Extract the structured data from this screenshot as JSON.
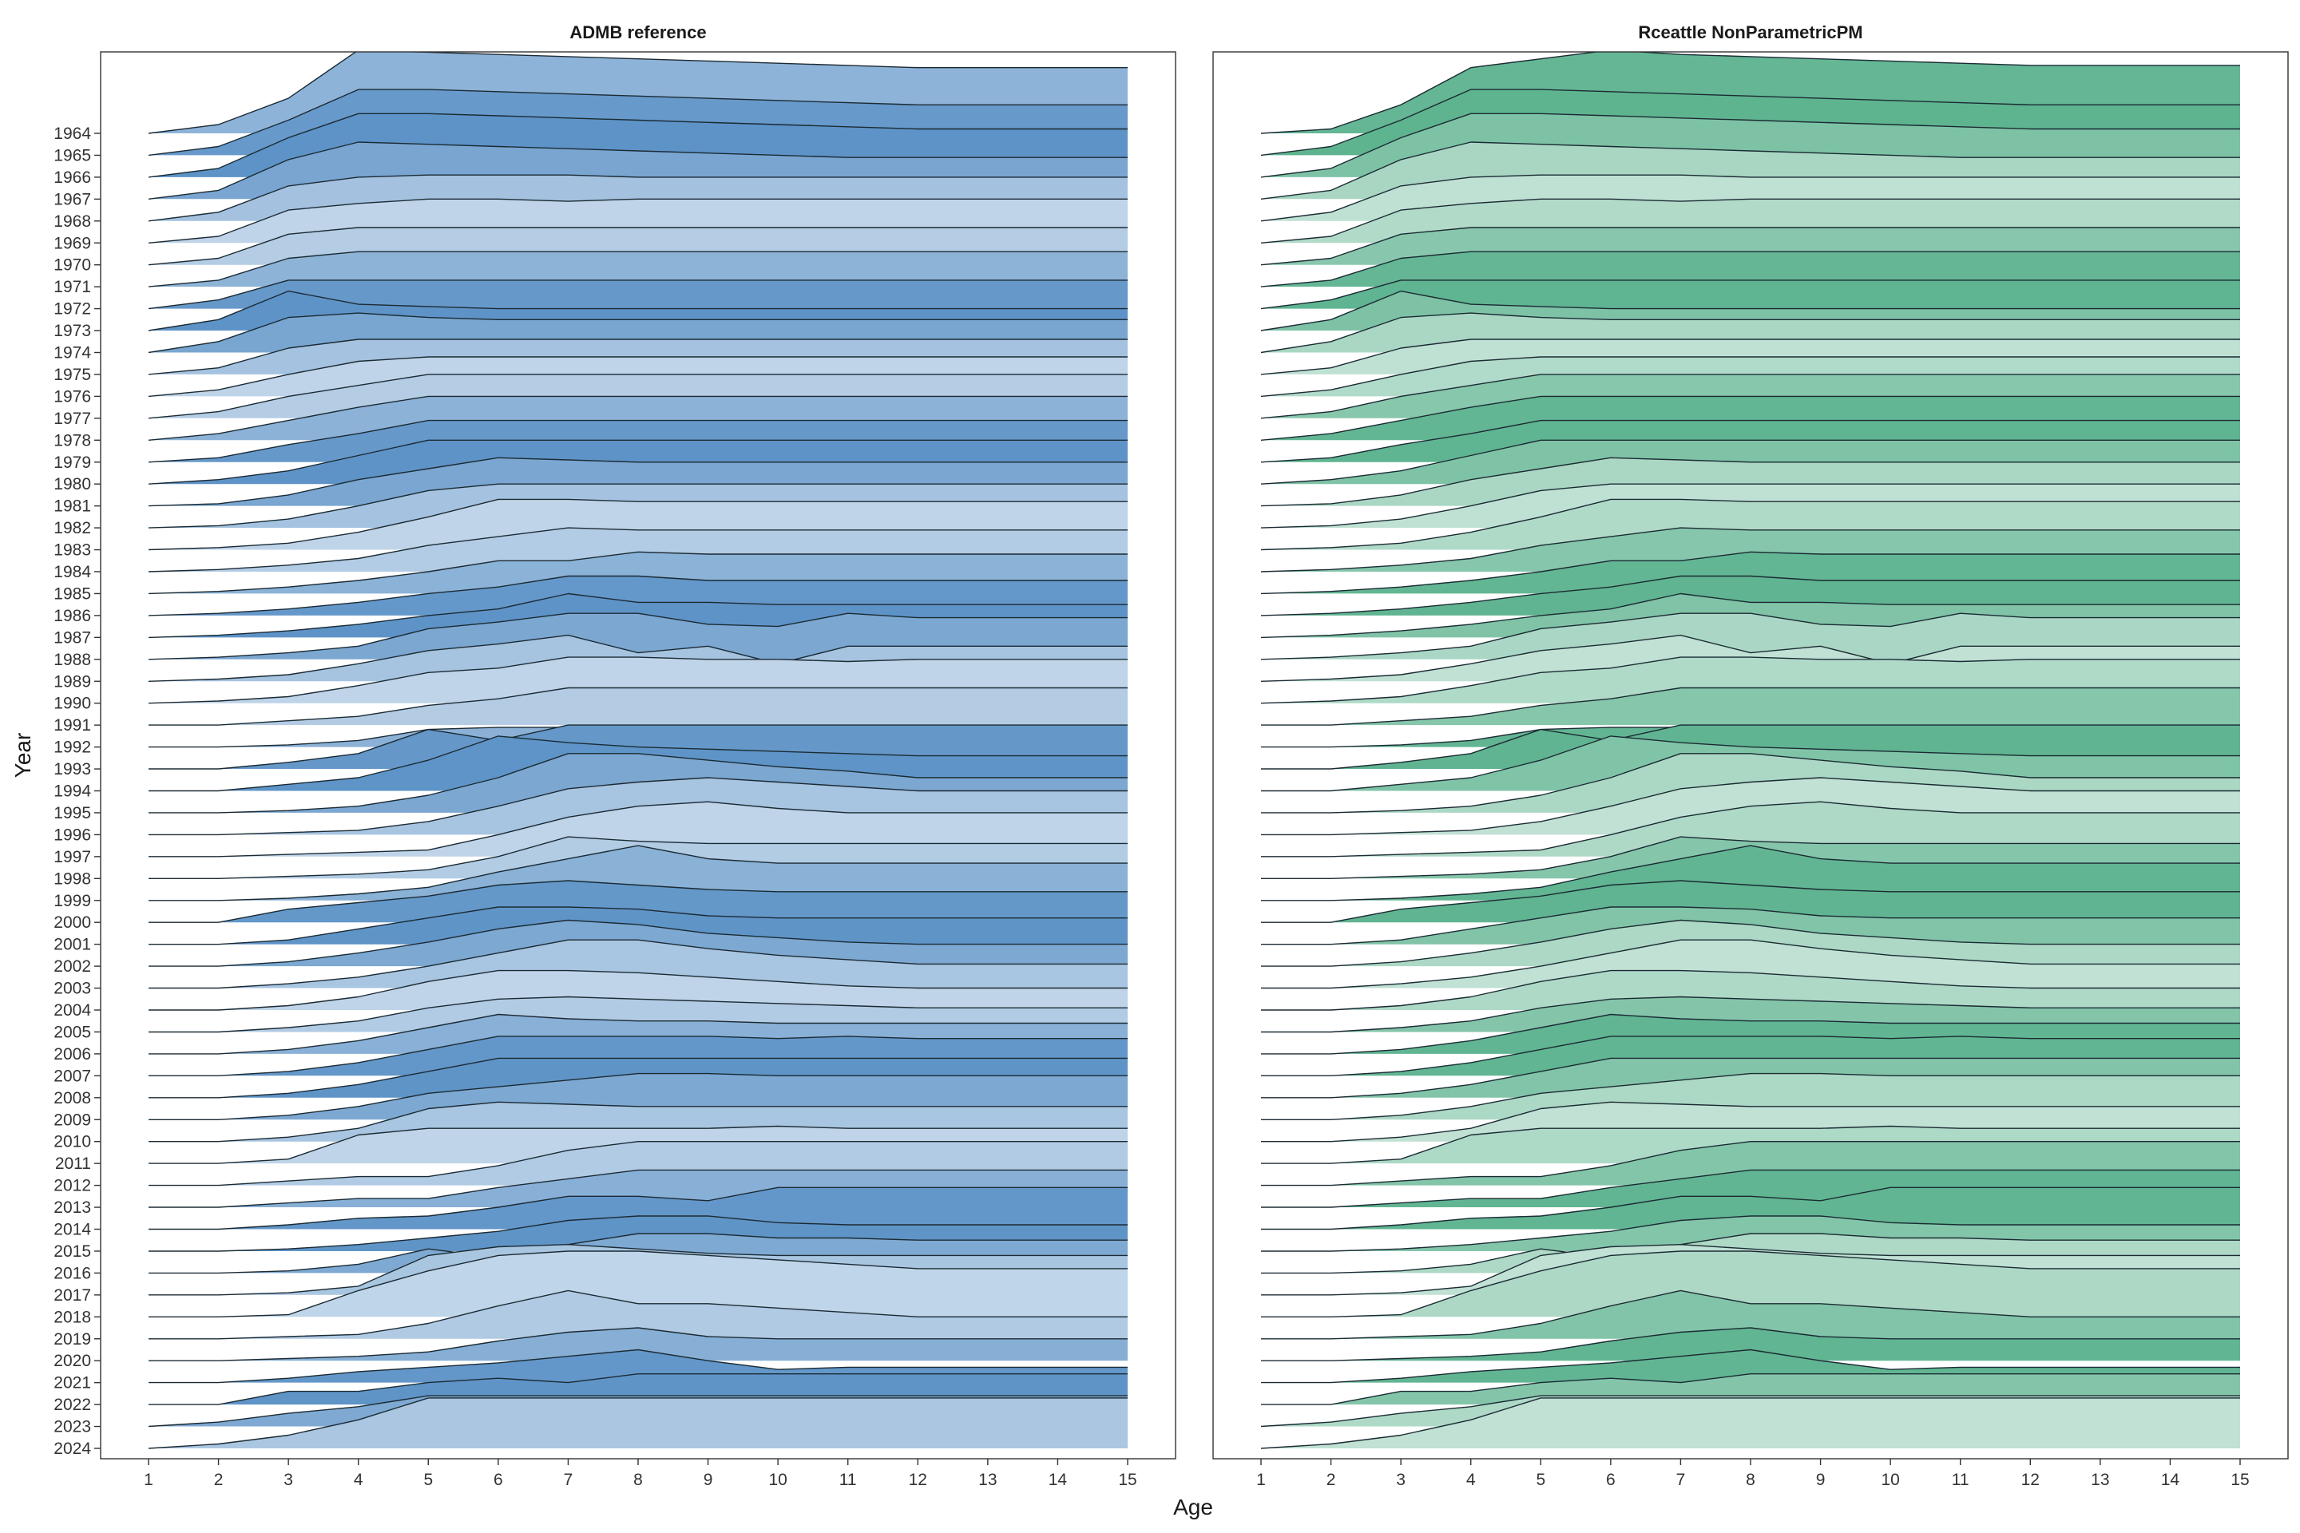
{
  "chart_data": {
    "type": "area",
    "subtype": "ridgeline",
    "xlabel": "Age",
    "ylabel": "Year",
    "ages": [
      1,
      2,
      3,
      4,
      5,
      6,
      7,
      8,
      9,
      10,
      11,
      12,
      13,
      14,
      15
    ],
    "years": [
      1964,
      1965,
      1966,
      1967,
      1968,
      1969,
      1970,
      1971,
      1972,
      1973,
      1974,
      1975,
      1976,
      1977,
      1978,
      1979,
      1980,
      1981,
      1982,
      1983,
      1984,
      1985,
      1986,
      1987,
      1988,
      1989,
      1990,
      1991,
      1992,
      1993,
      1994,
      1995,
      1996,
      1997,
      1998,
      1999,
      2000,
      2001,
      2002,
      2003,
      2004,
      2005,
      2006,
      2007,
      2008,
      2009,
      2010,
      2011,
      2012,
      2013,
      2014,
      2015,
      2016,
      2017,
      2018,
      2019,
      2020,
      2021,
      2022,
      2023,
      2024
    ],
    "xlim": [
      1,
      15
    ],
    "grid": false,
    "legend": "none",
    "value_units": "ridge height in multiples of year spacing",
    "panels": [
      {
        "title": "ADMB reference",
        "color": "#4a86c0",
        "series_key": "shared_profiles"
      },
      {
        "title": "Rceattle NonParametricPM",
        "color": "#4aaa82",
        "series_key": "shared_profiles",
        "overrides": {
          "1964": [
            0.0,
            0.2,
            1.3,
            3.0,
            3.4,
            3.8,
            3.6,
            3.5,
            3.4,
            3.3,
            3.2,
            3.1,
            3.1,
            3.1,
            3.1
          ]
        }
      }
    ],
    "shared_profiles": {
      "1964": [
        0.0,
        0.4,
        1.6,
        3.8,
        3.7,
        3.6,
        3.5,
        3.4,
        3.3,
        3.2,
        3.1,
        3.0,
        3.0,
        3.0,
        3.0
      ],
      "1965": [
        0.0,
        0.4,
        1.6,
        3.0,
        3.0,
        2.9,
        2.8,
        2.7,
        2.6,
        2.5,
        2.4,
        2.3,
        2.3,
        2.3,
        2.3
      ],
      "1966": [
        0.0,
        0.4,
        1.8,
        2.9,
        2.9,
        2.8,
        2.7,
        2.6,
        2.5,
        2.4,
        2.3,
        2.2,
        2.2,
        2.2,
        2.2
      ],
      "1967": [
        0.0,
        0.4,
        1.8,
        2.6,
        2.5,
        2.4,
        2.3,
        2.2,
        2.1,
        2.0,
        1.9,
        1.9,
        1.9,
        1.9,
        1.9
      ],
      "1968": [
        0.0,
        0.4,
        1.6,
        2.0,
        2.1,
        2.1,
        2.1,
        2.0,
        2.0,
        2.0,
        2.0,
        2.0,
        2.0,
        2.0,
        2.0
      ],
      "1969": [
        0.0,
        0.3,
        1.5,
        1.8,
        2.0,
        2.0,
        1.9,
        2.0,
        2.0,
        2.0,
        2.0,
        2.0,
        2.0,
        2.0,
        2.0
      ],
      "1970": [
        0.0,
        0.3,
        1.4,
        1.7,
        1.7,
        1.7,
        1.7,
        1.7,
        1.7,
        1.7,
        1.7,
        1.7,
        1.7,
        1.7,
        1.7
      ],
      "1971": [
        0.0,
        0.3,
        1.3,
        1.6,
        1.6,
        1.6,
        1.6,
        1.6,
        1.6,
        1.6,
        1.6,
        1.6,
        1.6,
        1.6,
        1.6
      ],
      "1972": [
        0.0,
        0.4,
        1.3,
        1.3,
        1.3,
        1.3,
        1.3,
        1.3,
        1.3,
        1.3,
        1.3,
        1.3,
        1.3,
        1.3,
        1.3
      ],
      "1973": [
        0.0,
        0.5,
        1.8,
        1.2,
        1.1,
        1.0,
        1.0,
        1.0,
        1.0,
        1.0,
        1.0,
        1.0,
        1.0,
        1.0,
        1.0
      ],
      "1974": [
        0.0,
        0.5,
        1.6,
        1.8,
        1.6,
        1.5,
        1.5,
        1.5,
        1.5,
        1.5,
        1.5,
        1.5,
        1.5,
        1.5,
        1.5
      ],
      "1975": [
        0.0,
        0.3,
        1.2,
        1.6,
        1.6,
        1.6,
        1.6,
        1.6,
        1.6,
        1.6,
        1.6,
        1.6,
        1.6,
        1.6,
        1.6
      ],
      "1976": [
        0.0,
        0.3,
        1.0,
        1.6,
        1.8,
        1.8,
        1.8,
        1.8,
        1.8,
        1.8,
        1.8,
        1.8,
        1.8,
        1.8,
        1.8
      ],
      "1977": [
        0.0,
        0.3,
        1.0,
        1.5,
        2.0,
        2.0,
        2.0,
        2.0,
        2.0,
        2.0,
        2.0,
        2.0,
        2.0,
        2.0,
        2.0
      ],
      "1978": [
        0.0,
        0.3,
        0.9,
        1.5,
        2.0,
        2.0,
        2.0,
        2.0,
        2.0,
        2.0,
        2.0,
        2.0,
        2.0,
        2.0,
        2.0
      ],
      "1979": [
        0.0,
        0.2,
        0.8,
        1.3,
        1.9,
        1.9,
        1.9,
        1.9,
        1.9,
        1.9,
        1.9,
        1.9,
        1.9,
        1.9,
        1.9
      ],
      "1980": [
        0.0,
        0.2,
        0.6,
        1.3,
        2.0,
        2.0,
        2.0,
        2.0,
        2.0,
        2.0,
        2.0,
        2.0,
        2.0,
        2.0,
        2.0
      ],
      "1981": [
        0.0,
        0.1,
        0.5,
        1.2,
        1.7,
        2.2,
        2.1,
        2.0,
        2.0,
        2.0,
        2.0,
        2.0,
        2.0,
        2.0,
        2.0
      ],
      "1982": [
        0.0,
        0.1,
        0.4,
        1.0,
        1.7,
        2.0,
        2.0,
        2.0,
        2.0,
        2.0,
        2.0,
        2.0,
        2.0,
        2.0,
        2.0
      ],
      "1983": [
        0.0,
        0.1,
        0.3,
        0.8,
        1.5,
        2.3,
        2.3,
        2.2,
        2.2,
        2.2,
        2.2,
        2.2,
        2.2,
        2.2,
        2.2
      ],
      "1984": [
        0.0,
        0.1,
        0.3,
        0.6,
        1.2,
        1.6,
        2.0,
        1.9,
        1.9,
        1.9,
        1.9,
        1.9,
        1.9,
        1.9,
        1.9
      ],
      "1985": [
        0.0,
        0.1,
        0.3,
        0.6,
        1.0,
        1.5,
        1.5,
        1.9,
        1.8,
        1.8,
        1.8,
        1.8,
        1.8,
        1.8,
        1.8
      ],
      "1986": [
        0.0,
        0.1,
        0.3,
        0.6,
        1.0,
        1.3,
        1.8,
        1.8,
        1.6,
        1.6,
        1.6,
        1.6,
        1.6,
        1.6,
        1.6
      ],
      "1987": [
        0.0,
        0.1,
        0.3,
        0.6,
        1.0,
        1.3,
        2.0,
        1.6,
        1.6,
        1.5,
        1.5,
        1.5,
        1.5,
        1.5,
        1.5
      ],
      "1988": [
        0.0,
        0.1,
        0.3,
        0.6,
        1.4,
        1.7,
        2.1,
        2.1,
        1.6,
        1.5,
        2.1,
        1.9,
        1.9,
        1.9,
        1.9
      ],
      "1989": [
        0.0,
        0.1,
        0.3,
        0.8,
        1.4,
        1.7,
        2.1,
        1.3,
        1.6,
        0.8,
        1.6,
        1.6,
        1.6,
        1.6,
        1.6
      ],
      "1990": [
        0.0,
        0.1,
        0.3,
        0.8,
        1.4,
        1.6,
        2.1,
        2.1,
        2.0,
        2.0,
        1.9,
        2.0,
        2.0,
        2.0,
        2.0
      ],
      "1991": [
        0.0,
        0.0,
        0.2,
        0.4,
        0.9,
        1.2,
        1.7,
        1.7,
        1.7,
        1.7,
        1.7,
        1.7,
        1.7,
        1.7,
        1.7
      ],
      "1992": [
        0.0,
        0.0,
        0.1,
        0.3,
        0.8,
        0.9,
        0.9,
        0.9,
        0.9,
        0.9,
        0.9,
        0.9,
        0.9,
        0.9,
        0.9
      ],
      "1993": [
        0.0,
        0.0,
        0.3,
        0.7,
        1.8,
        1.3,
        2.0,
        2.0,
        2.0,
        2.0,
        2.0,
        2.0,
        2.0,
        2.0,
        2.0
      ],
      "1994": [
        0.0,
        0.0,
        0.3,
        0.6,
        1.4,
        2.5,
        2.2,
        2.0,
        1.9,
        1.8,
        1.7,
        1.6,
        1.6,
        1.6,
        1.6
      ],
      "1995": [
        0.0,
        0.0,
        0.1,
        0.3,
        0.8,
        1.6,
        2.7,
        2.7,
        2.4,
        2.1,
        1.9,
        1.6,
        1.6,
        1.6,
        1.6
      ],
      "1996": [
        0.0,
        0.0,
        0.1,
        0.2,
        0.6,
        1.3,
        2.1,
        2.4,
        2.6,
        2.4,
        2.2,
        2.0,
        2.0,
        2.0,
        2.0
      ],
      "1997": [
        0.0,
        0.0,
        0.1,
        0.2,
        0.3,
        1.0,
        1.8,
        2.3,
        2.5,
        2.2,
        2.0,
        2.0,
        2.0,
        2.0,
        2.0
      ],
      "1998": [
        0.0,
        0.0,
        0.1,
        0.2,
        0.4,
        1.0,
        1.9,
        1.7,
        1.6,
        1.6,
        1.6,
        1.6,
        1.6,
        1.6,
        1.6
      ],
      "1999": [
        0.0,
        0.0,
        0.1,
        0.3,
        0.6,
        1.3,
        1.9,
        2.5,
        1.9,
        1.7,
        1.7,
        1.7,
        1.7,
        1.7,
        1.7
      ],
      "2000": [
        0.0,
        0.0,
        0.6,
        0.9,
        1.2,
        1.7,
        1.9,
        1.7,
        1.5,
        1.4,
        1.4,
        1.4,
        1.4,
        1.4,
        1.4
      ],
      "2001": [
        0.0,
        0.0,
        0.2,
        0.7,
        1.2,
        1.7,
        1.7,
        1.6,
        1.3,
        1.2,
        1.2,
        1.2,
        1.2,
        1.2,
        1.2
      ],
      "2002": [
        0.0,
        0.0,
        0.2,
        0.6,
        1.1,
        1.7,
        2.1,
        1.9,
        1.5,
        1.3,
        1.1,
        1.0,
        1.0,
        1.0,
        1.0
      ],
      "2003": [
        0.0,
        0.0,
        0.2,
        0.5,
        1.0,
        1.6,
        2.2,
        2.2,
        1.8,
        1.5,
        1.3,
        1.1,
        1.1,
        1.1,
        1.1
      ],
      "2004": [
        0.0,
        0.0,
        0.2,
        0.6,
        1.3,
        1.8,
        1.8,
        1.7,
        1.5,
        1.3,
        1.1,
        1.0,
        1.0,
        1.0,
        1.0
      ],
      "2005": [
        0.0,
        0.0,
        0.2,
        0.5,
        1.1,
        1.5,
        1.6,
        1.5,
        1.4,
        1.3,
        1.2,
        1.1,
        1.1,
        1.1,
        1.1
      ],
      "2006": [
        0.0,
        0.0,
        0.2,
        0.6,
        1.2,
        1.8,
        1.6,
        1.5,
        1.5,
        1.4,
        1.4,
        1.4,
        1.4,
        1.4,
        1.4
      ],
      "2007": [
        0.0,
        0.0,
        0.2,
        0.6,
        1.2,
        1.8,
        1.8,
        1.8,
        1.8,
        1.7,
        1.8,
        1.7,
        1.7,
        1.7,
        1.7
      ],
      "2008": [
        0.0,
        0.0,
        0.2,
        0.6,
        1.2,
        1.8,
        1.8,
        1.8,
        1.8,
        1.8,
        1.8,
        1.8,
        1.8,
        1.8,
        1.8
      ],
      "2009": [
        0.0,
        0.0,
        0.2,
        0.6,
        1.2,
        1.5,
        1.8,
        2.1,
        2.1,
        2.0,
        2.0,
        2.0,
        2.0,
        2.0,
        2.0
      ],
      "2010": [
        0.0,
        0.0,
        0.2,
        0.6,
        1.5,
        1.8,
        1.7,
        1.6,
        1.6,
        1.6,
        1.6,
        1.6,
        1.6,
        1.6,
        1.6
      ],
      "2011": [
        0.0,
        0.0,
        0.2,
        1.3,
        1.6,
        1.6,
        1.6,
        1.6,
        1.6,
        1.7,
        1.6,
        1.6,
        1.6,
        1.6,
        1.6
      ],
      "2012": [
        0.0,
        0.0,
        0.2,
        0.4,
        0.4,
        0.9,
        1.6,
        2.0,
        2.0,
        2.0,
        2.0,
        2.0,
        2.0,
        2.0,
        2.0
      ],
      "2013": [
        0.0,
        0.0,
        0.2,
        0.4,
        0.4,
        0.9,
        1.3,
        1.7,
        1.7,
        1.7,
        1.7,
        1.7,
        1.7,
        1.7,
        1.7
      ],
      "2014": [
        0.0,
        0.0,
        0.2,
        0.5,
        0.6,
        1.0,
        1.5,
        1.5,
        1.3,
        1.9,
        1.9,
        1.9,
        1.9,
        1.9,
        1.9
      ],
      "2015": [
        0.0,
        0.0,
        0.1,
        0.3,
        0.6,
        0.9,
        1.4,
        1.6,
        1.6,
        1.3,
        1.2,
        1.2,
        1.2,
        1.2,
        1.2
      ],
      "2016": [
        0.0,
        0.0,
        0.1,
        0.4,
        1.1,
        0.7,
        1.3,
        1.8,
        1.8,
        1.6,
        1.6,
        1.5,
        1.5,
        1.5,
        1.5
      ],
      "2017": [
        0.0,
        0.0,
        0.1,
        0.4,
        1.8,
        2.2,
        2.3,
        2.1,
        1.9,
        1.8,
        1.8,
        1.8,
        1.8,
        1.8,
        1.8
      ],
      "2018": [
        0.0,
        0.0,
        0.1,
        1.2,
        2.1,
        2.8,
        3.0,
        3.0,
        2.8,
        2.6,
        2.4,
        2.2,
        2.2,
        2.2,
        2.2
      ],
      "2019": [
        0.0,
        0.0,
        0.1,
        0.2,
        0.7,
        1.5,
        2.2,
        1.6,
        1.6,
        1.4,
        1.2,
        1.0,
        1.0,
        1.0,
        1.0
      ],
      "2020": [
        0.0,
        0.0,
        0.1,
        0.2,
        0.4,
        0.9,
        1.3,
        1.5,
        1.1,
        1.0,
        1.0,
        1.0,
        1.0,
        1.0,
        1.0
      ],
      "2021": [
        0.0,
        0.0,
        0.2,
        0.5,
        0.7,
        0.9,
        1.2,
        1.5,
        1.0,
        0.6,
        0.7,
        0.7,
        0.7,
        0.7,
        0.7
      ],
      "2022": [
        0.0,
        0.0,
        0.6,
        0.6,
        1.0,
        1.2,
        1.0,
        1.4,
        1.4,
        1.4,
        1.4,
        1.4,
        1.4,
        1.4,
        1.4
      ],
      "2023": [
        0.0,
        0.2,
        0.6,
        0.9,
        1.4,
        1.4,
        1.4,
        1.4,
        1.4,
        1.4,
        1.4,
        1.4,
        1.4,
        1.4,
        1.4
      ],
      "2024": [
        0.0,
        0.2,
        0.6,
        1.3,
        2.3,
        2.3,
        2.3,
        2.3,
        2.3,
        2.3,
        2.3,
        2.3,
        2.3,
        2.3,
        2.3
      ]
    }
  }
}
